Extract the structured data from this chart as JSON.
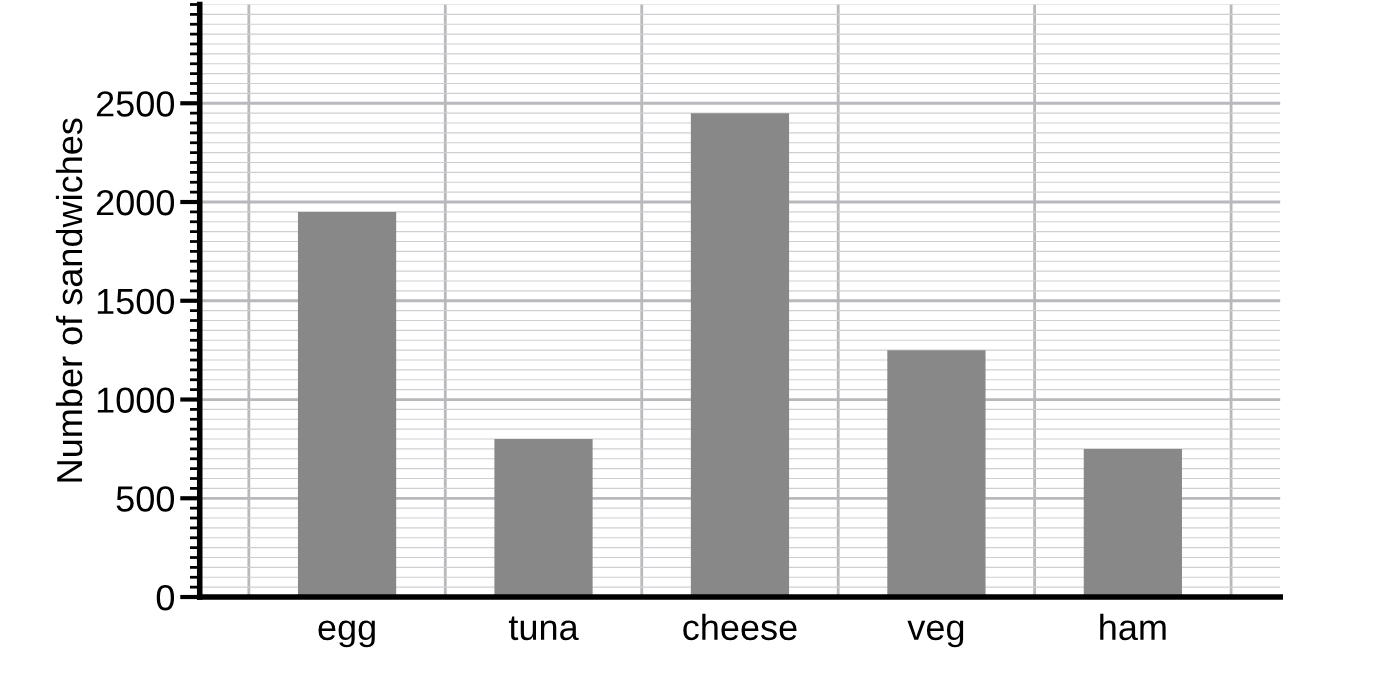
{
  "chart_data": {
    "type": "bar",
    "ylabel": "Number of sandwiches",
    "categories": [
      "egg",
      "tuna",
      "cheese",
      "veg",
      "ham"
    ],
    "values": [
      1950,
      800,
      2450,
      1250,
      750
    ],
    "color": "#888888",
    "ylim": [
      0,
      3000
    ],
    "yticks": [
      0,
      500,
      1000,
      1500,
      2000,
      2500
    ],
    "grid": true
  }
}
